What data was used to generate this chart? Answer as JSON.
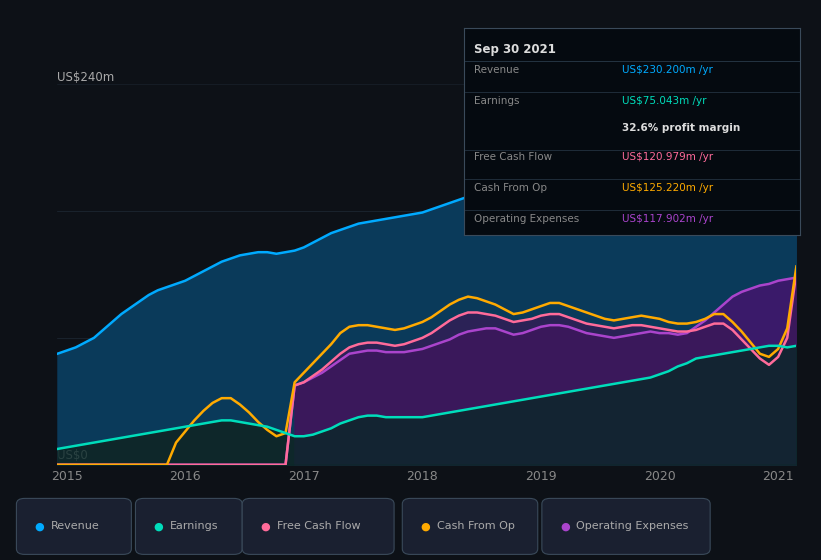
{
  "background_color": "#0d1117",
  "plot_bg_color": "#0d1117",
  "ylabel_top": "US$240m",
  "ylabel_bottom": "US$0",
  "ylim": [
    0,
    240
  ],
  "grid_color": "#2a3a4a",
  "revenue_color": "#00aaff",
  "revenue_fill": "#0a3a5a",
  "earnings_color": "#00ddbb",
  "earnings_fill": "#0a3030",
  "fcf_color": "#ff6b9a",
  "fcf_fill": "#4a2560",
  "cashfromop_color": "#ffaa00",
  "opex_color": "#aa44cc",
  "opex_fill": "#3a1a6a",
  "legend_bg": "#161b27",
  "legend_border": "#3a4a5a",
  "tooltip_bg": "#050a10",
  "tooltip_border": "#2a3a4a",
  "revenue_label": "Revenue",
  "earnings_label": "Earnings",
  "fcf_label": "Free Cash Flow",
  "cashfromop_label": "Cash From Op",
  "opex_label": "Operating Expenses",
  "tooltip_title": "Sep 30 2021",
  "tooltip_revenue_label": "Revenue",
  "tooltip_revenue_value": "US$230.200m",
  "tooltip_earnings_label": "Earnings",
  "tooltip_earnings_value": "US$75.043m",
  "tooltip_margin": "32.6%",
  "tooltip_margin_suffix": " profit margin",
  "tooltip_fcf_label": "Free Cash Flow",
  "tooltip_fcf_value": "US$120.979m",
  "tooltip_cashfromop_label": "Cash From Op",
  "tooltip_cashfromop_value": "US$125.220m",
  "tooltip_opex_label": "Operating Expenses",
  "tooltip_opex_value": "US$117.902m",
  "tooltip_yr": " /yr",
  "x_labels": [
    "2015",
    "2016",
    "2017",
    "2018",
    "2019",
    "2020",
    "2021"
  ],
  "revenue_data": [
    70,
    72,
    74,
    77,
    80,
    85,
    90,
    95,
    99,
    103,
    107,
    110,
    112,
    114,
    116,
    119,
    122,
    125,
    128,
    130,
    132,
    133,
    134,
    134,
    133,
    134,
    135,
    137,
    140,
    143,
    146,
    148,
    150,
    152,
    153,
    154,
    155,
    156,
    157,
    158,
    159,
    161,
    163,
    165,
    167,
    169,
    170,
    171,
    172,
    173,
    174,
    175,
    177,
    179,
    181,
    183,
    185,
    185,
    184,
    183,
    182,
    181,
    180,
    179,
    180,
    182,
    185,
    189,
    194,
    199,
    205,
    211,
    217,
    220,
    222,
    224,
    226,
    228,
    230,
    232,
    233,
    230
  ],
  "earnings_data": [
    10,
    11,
    12,
    13,
    14,
    15,
    16,
    17,
    18,
    19,
    20,
    21,
    22,
    23,
    24,
    25,
    26,
    27,
    28,
    28,
    27,
    26,
    25,
    24,
    22,
    20,
    18,
    18,
    19,
    21,
    23,
    26,
    28,
    30,
    31,
    31,
    30,
    30,
    30,
    30,
    30,
    31,
    32,
    33,
    34,
    35,
    36,
    37,
    38,
    39,
    40,
    41,
    42,
    43,
    44,
    45,
    46,
    47,
    48,
    49,
    50,
    51,
    52,
    53,
    54,
    55,
    57,
    59,
    62,
    64,
    67,
    68,
    69,
    70,
    71,
    72,
    73,
    74,
    75,
    75,
    74,
    75
  ],
  "fcf_data": [
    0,
    0,
    0,
    0,
    0,
    0,
    0,
    0,
    0,
    0,
    0,
    0,
    0,
    0,
    0,
    0,
    0,
    0,
    0,
    0,
    0,
    0,
    0,
    0,
    0,
    0,
    50,
    52,
    56,
    60,
    65,
    70,
    74,
    76,
    77,
    77,
    76,
    75,
    76,
    78,
    80,
    83,
    87,
    91,
    94,
    96,
    96,
    95,
    94,
    92,
    90,
    91,
    92,
    94,
    95,
    95,
    93,
    91,
    89,
    88,
    87,
    86,
    87,
    88,
    88,
    87,
    86,
    85,
    84,
    84,
    85,
    87,
    89,
    89,
    85,
    79,
    73,
    67,
    63,
    68,
    80,
    121
  ],
  "cashfromop_data": [
    0,
    0,
    0,
    0,
    0,
    0,
    0,
    0,
    0,
    0,
    0,
    0,
    0,
    14,
    21,
    28,
    34,
    39,
    42,
    42,
    38,
    33,
    27,
    22,
    18,
    20,
    52,
    58,
    64,
    70,
    76,
    83,
    87,
    88,
    88,
    87,
    86,
    85,
    86,
    88,
    90,
    93,
    97,
    101,
    104,
    106,
    105,
    103,
    101,
    98,
    95,
    96,
    98,
    100,
    102,
    102,
    100,
    98,
    96,
    94,
    92,
    91,
    92,
    93,
    94,
    93,
    92,
    90,
    89,
    89,
    90,
    92,
    95,
    95,
    90,
    84,
    77,
    70,
    68,
    73,
    86,
    125
  ],
  "opex_data": [
    0,
    0,
    0,
    0,
    0,
    0,
    0,
    0,
    0,
    0,
    0,
    0,
    0,
    0,
    0,
    0,
    0,
    0,
    0,
    0,
    0,
    0,
    0,
    0,
    0,
    0,
    50,
    52,
    55,
    58,
    62,
    66,
    70,
    71,
    72,
    72,
    71,
    71,
    71,
    72,
    73,
    75,
    77,
    79,
    82,
    84,
    85,
    86,
    86,
    84,
    82,
    83,
    85,
    87,
    88,
    88,
    87,
    85,
    83,
    82,
    81,
    80,
    81,
    82,
    83,
    84,
    83,
    83,
    82,
    83,
    87,
    91,
    96,
    101,
    106,
    109,
    111,
    113,
    114,
    116,
    117,
    118
  ],
  "n_points": 82,
  "sr": 26,
  "gray_fill_color": "#1e2535"
}
